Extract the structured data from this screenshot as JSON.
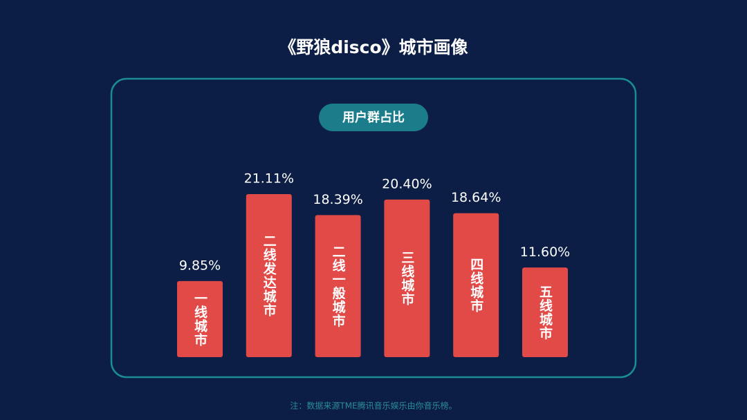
{
  "chart_data": {
    "type": "bar",
    "title": "《野狼disco》城市画像",
    "subtitle": "用户群占比",
    "categories": [
      "一线城市",
      "二线发达城市",
      "二线一般城市",
      "三线城市",
      "四线城市",
      "五线城市"
    ],
    "values": [
      9.85,
      21.11,
      18.39,
      20.4,
      18.64,
      11.6
    ],
    "value_labels": [
      "9.85%",
      "21.11%",
      "18.39%",
      "20.40%",
      "18.64%",
      "11.60%"
    ],
    "color": "#e24a47",
    "note": "注：数据来源TME腾讯音乐娱乐由你音乐榜。"
  }
}
